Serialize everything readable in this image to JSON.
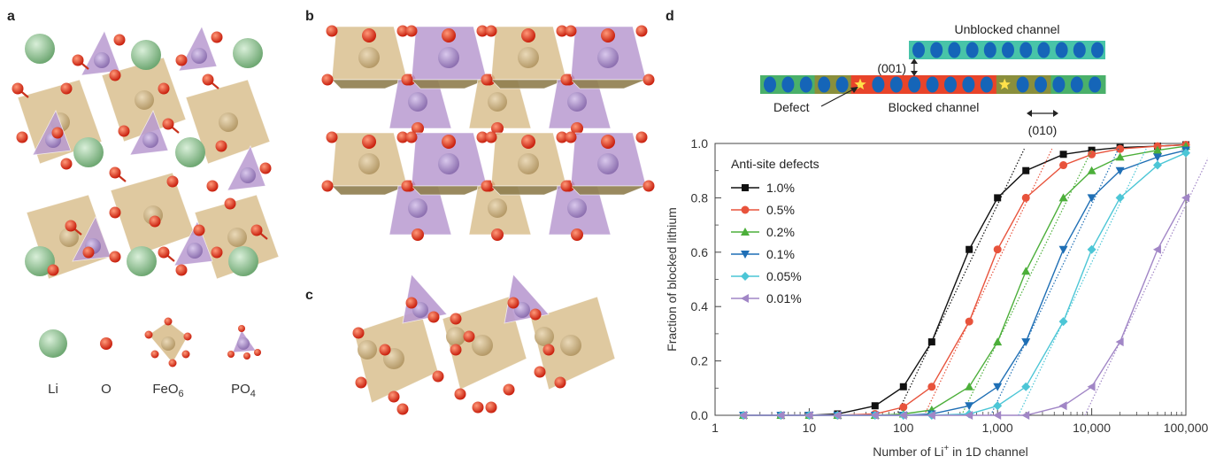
{
  "panels": {
    "a": "a",
    "b": "b",
    "c": "c",
    "d": "d"
  },
  "legend_species": [
    {
      "key": "li",
      "label": "Li",
      "sub": ""
    },
    {
      "key": "o",
      "label": "O",
      "sub": ""
    },
    {
      "key": "feo6",
      "label": "FeO",
      "sub": "6"
    },
    {
      "key": "po4",
      "label": "PO",
      "sub": "4"
    }
  ],
  "colors": {
    "li": "#8cc08e",
    "o": "#e8341c",
    "fe_poly": "#d9bf8f",
    "p_poly": "#b99ad0",
    "grid_line": "#000000",
    "ch_green": "#4ab06a",
    "ch_blue": "#1565b8",
    "ch_red": "#e8442a",
    "ch_olive": "#8a8f3c",
    "ch_teal": "#48c4a8",
    "star": "#ffe14a"
  },
  "channel": {
    "unblocked_label": "Unblocked channel",
    "blocked_label": "Blocked channel",
    "defect_label": "Defect",
    "dir_001": "(001)",
    "dir_010": "(010)"
  },
  "chart_data": {
    "type": "line",
    "xscale": "log",
    "xlim": [
      1,
      100000
    ],
    "ylim": [
      0.0,
      1.0
    ],
    "xlabel_main": "Number of Li",
    "xlabel_sup": "+",
    "xlabel_rest": " in 1D channel",
    "ylabel": "Fraction of blocked lithium",
    "xticks": [
      1,
      10,
      100,
      1000,
      10000,
      100000
    ],
    "xtick_labels": [
      "1",
      "10",
      "100",
      "1,000",
      "10,000",
      "100,000"
    ],
    "yticks": [
      0.0,
      0.2,
      0.4,
      0.6,
      0.8,
      1.0
    ],
    "ytick_labels": [
      "0.0",
      "0.2",
      "0.4",
      "0.6",
      "0.8",
      "1.0"
    ],
    "legend_title": "Anti-site defects",
    "legend_position": "top-left",
    "x": [
      2,
      5,
      10,
      20,
      50,
      100,
      200,
      500,
      1000,
      2000,
      5000,
      10000,
      20000,
      50000,
      100000
    ],
    "series": [
      {
        "name": "1.0%",
        "color": "#111111",
        "marker": "square",
        "values": [
          0.0,
          0.0,
          0.0,
          0.005,
          0.035,
          0.105,
          0.27,
          0.61,
          0.8,
          0.9,
          0.96,
          0.975,
          0.985,
          0.99,
          0.995
        ]
      },
      {
        "name": "0.5%",
        "color": "#e8533c",
        "marker": "circle",
        "values": [
          0.0,
          0.0,
          0.0,
          0.0,
          0.005,
          0.03,
          0.105,
          0.345,
          0.61,
          0.8,
          0.92,
          0.96,
          0.98,
          0.99,
          0.995
        ]
      },
      {
        "name": "0.2%",
        "color": "#4caf3a",
        "marker": "triangle-up",
        "values": [
          0.0,
          0.0,
          0.0,
          0.0,
          0.0,
          0.005,
          0.02,
          0.105,
          0.27,
          0.53,
          0.8,
          0.9,
          0.95,
          0.975,
          0.99
        ]
      },
      {
        "name": "0.1%",
        "color": "#1f6fb5",
        "marker": "triangle-down",
        "values": [
          0.0,
          0.0,
          0.0,
          0.0,
          0.0,
          0.0,
          0.005,
          0.035,
          0.105,
          0.27,
          0.61,
          0.8,
          0.9,
          0.95,
          0.975
        ]
      },
      {
        "name": "0.05%",
        "color": "#4cc6d6",
        "marker": "diamond",
        "values": [
          0.0,
          0.0,
          0.0,
          0.0,
          0.0,
          0.0,
          0.0,
          0.005,
          0.035,
          0.105,
          0.345,
          0.61,
          0.8,
          0.92,
          0.965
        ]
      },
      {
        "name": "0.01%",
        "color": "#a186c6",
        "marker": "triangle-left",
        "values": [
          0.0,
          0.0,
          0.0,
          0.0,
          0.0,
          0.0,
          0.0,
          0.0,
          0.0,
          0.0,
          0.035,
          0.105,
          0.27,
          0.61,
          0.8
        ]
      }
    ]
  }
}
